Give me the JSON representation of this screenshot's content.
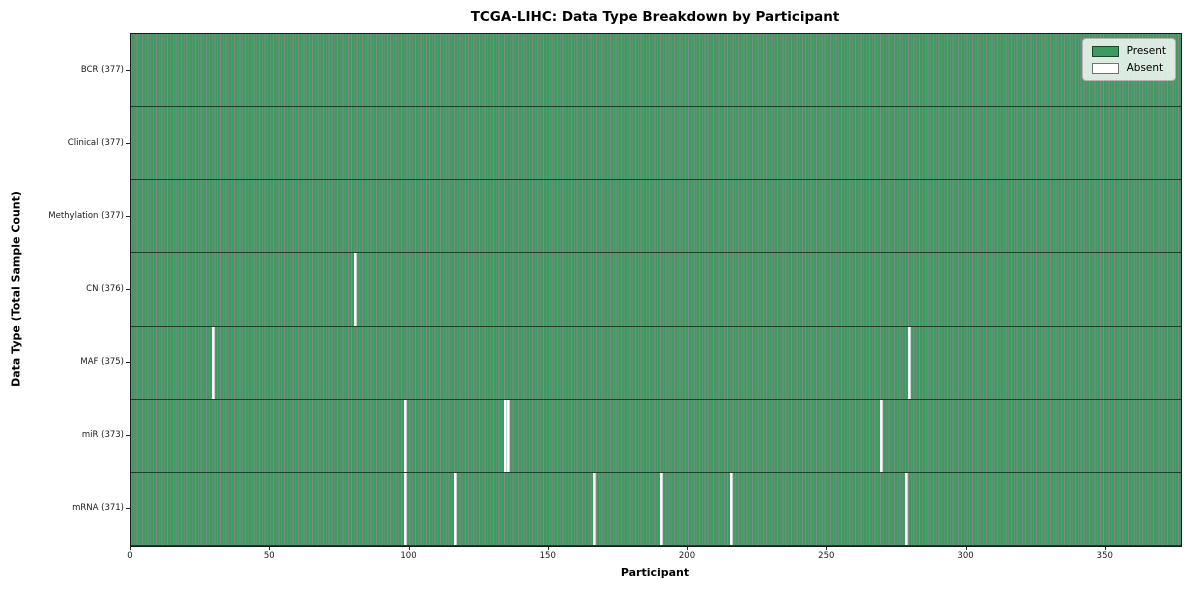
{
  "title": "TCGA-LIHC: Data Type Breakdown by Participant",
  "axes": {
    "xlabel": "Participant",
    "ylabel": "Data Type (Total Sample Count)"
  },
  "legend": {
    "present": "Present",
    "absent": "Absent"
  },
  "colors": {
    "present": "#3d9a61",
    "absent": "#ffffff",
    "cell_edge": "rgba(8,22,13,0.50)",
    "row_divider": "rgba(5,15,9,0.65)",
    "plot_border": "#1a1a1a",
    "legend_bg": "rgba(255,255,255,0.8)",
    "legend_border": "#b3b3b3"
  },
  "chart_data": {
    "type": "heatmap",
    "title": "TCGA-LIHC: Data Type Breakdown by Participant",
    "xlabel": "Participant",
    "ylabel": "Data Type (Total Sample Count)",
    "x_range": [
      0,
      377
    ],
    "n_participants": 377,
    "x_ticks": [
      0,
      50,
      100,
      150,
      200,
      250,
      300,
      350
    ],
    "grid": false,
    "legend_position": "upper right",
    "legend_entries": [
      {
        "label": "Present",
        "color": "#3d9a61"
      },
      {
        "label": "Absent",
        "color": "#ffffff"
      }
    ],
    "rows": [
      {
        "label": "BCR (377)",
        "data_type": "BCR",
        "present_count": 377,
        "absent_participants": []
      },
      {
        "label": "Clinical (377)",
        "data_type": "Clinical",
        "present_count": 377,
        "absent_participants": []
      },
      {
        "label": "Methylation (377)",
        "data_type": "Methylation",
        "present_count": 377,
        "absent_participants": []
      },
      {
        "label": "CN (376)",
        "data_type": "CN",
        "present_count": 376,
        "absent_participants": [
          80
        ]
      },
      {
        "label": "MAF (375)",
        "data_type": "MAF",
        "present_count": 375,
        "absent_participants": [
          29,
          279
        ]
      },
      {
        "label": "miR (373)",
        "data_type": "miR",
        "present_count": 373,
        "absent_participants": [
          98,
          134,
          135,
          269
        ]
      },
      {
        "label": "mRNA (371)",
        "data_type": "mRNA",
        "present_count": 371,
        "absent_participants": [
          98,
          116,
          166,
          190,
          215,
          278
        ]
      }
    ]
  }
}
